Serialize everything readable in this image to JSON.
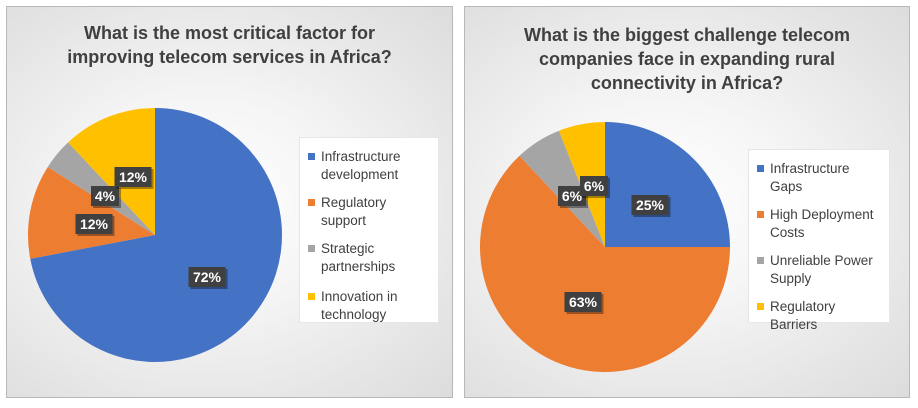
{
  "chart_data": [
    {
      "type": "pie",
      "title": "What is the most critical factor for\nimproving telecom services in Africa?",
      "categories": [
        "Infrastructure development",
        "Regulatory support",
        "Strategic partnerships",
        "Innovation in technology"
      ],
      "values": [
        72,
        12,
        4,
        12
      ],
      "data_labels": [
        "72%",
        "12%",
        "4%",
        "12%"
      ],
      "colors": [
        "#4472C4",
        "#ED7D31",
        "#A5A5A5",
        "#FFC000"
      ],
      "legend_labels": [
        "Infrastructure\ndevelopment",
        "Regulatory support",
        "Strategic\npartnerships",
        "Innovation in\ntechnology"
      ],
      "legend_position": "right"
    },
    {
      "type": "pie",
      "title": "What is the biggest challenge telecom\ncompanies face in expanding rural\nconnectivity in Africa?",
      "categories": [
        "Infrastructure Gaps",
        "High Deployment Costs",
        "Unreliable Power Supply",
        "Regulatory Barriers"
      ],
      "values": [
        25,
        63,
        6,
        6
      ],
      "data_labels": [
        "25%",
        "63%",
        "6%",
        "6%"
      ],
      "colors": [
        "#4472C4",
        "#ED7D31",
        "#A5A5A5",
        "#FFC000"
      ],
      "legend_labels": [
        "Infrastructure Gaps",
        "High Deployment\nCosts",
        "Unreliable Power\nSupply",
        "Regulatory Barriers"
      ],
      "legend_position": "right"
    }
  ]
}
